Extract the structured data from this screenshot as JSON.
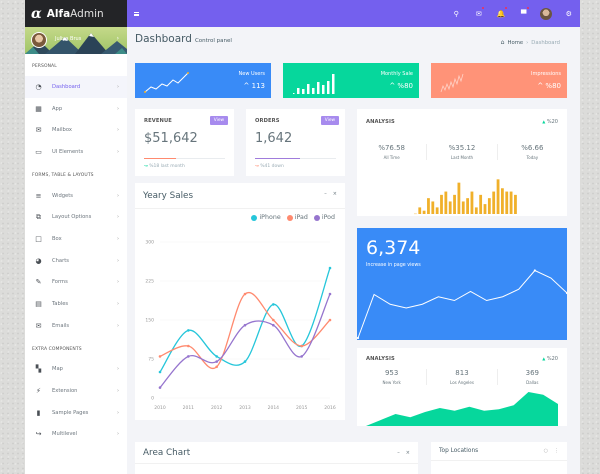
{
  "app": {
    "logo_symbol": "α",
    "logo_bold": "Alfa",
    "logo_light": "Admin"
  },
  "profile": {
    "name": "Juliya Brus",
    "chevron": "›"
  },
  "sidebar": {
    "sections": [
      {
        "title": "PERSONAL",
        "items": [
          {
            "label": "Dashboard",
            "icon": "dashboard-icon",
            "glyph": "◔",
            "active": true
          },
          {
            "label": "App",
            "icon": "apps-grid-icon",
            "glyph": "▦"
          },
          {
            "label": "Mailbox",
            "icon": "mailbox-icon",
            "glyph": "✉"
          },
          {
            "label": "UI Elements",
            "icon": "laptop-icon",
            "glyph": "▭"
          }
        ]
      },
      {
        "title": "FORMS, TABLE & LAYOUTS",
        "items": [
          {
            "label": "Widgets",
            "icon": "widgets-icon",
            "glyph": "≡"
          },
          {
            "label": "Layout Options",
            "icon": "layout-icon",
            "glyph": "⧉"
          },
          {
            "label": "Box",
            "icon": "box-icon",
            "glyph": "□"
          },
          {
            "label": "Charts",
            "icon": "pie-chart-icon",
            "glyph": "◕"
          },
          {
            "label": "Forms",
            "icon": "edit-form-icon",
            "glyph": "✎"
          },
          {
            "label": "Tables",
            "icon": "table-icon",
            "glyph": "▤"
          },
          {
            "label": "Emails",
            "icon": "email-open-icon",
            "glyph": "✉"
          }
        ]
      },
      {
        "title": "EXTRA COMPONENTS",
        "items": [
          {
            "label": "Map",
            "icon": "map-icon",
            "glyph": "▚"
          },
          {
            "label": "Extension",
            "icon": "plug-icon",
            "glyph": "⚡"
          },
          {
            "label": "Sample Pages",
            "icon": "file-icon",
            "glyph": "▮"
          },
          {
            "label": "Multilevel",
            "icon": "share-arrow-icon",
            "glyph": "↪"
          }
        ]
      }
    ]
  },
  "topbar": {
    "icons": [
      {
        "name": "search-icon",
        "glyph": "⚲",
        "badge": false
      },
      {
        "name": "mail-icon",
        "glyph": "✉",
        "badge": true
      },
      {
        "name": "bell-icon",
        "glyph": "🔔",
        "badge": true
      },
      {
        "name": "chat-icon",
        "glyph": "▀",
        "badge": true
      },
      {
        "name": "user-avatar",
        "glyph": "",
        "badge": false
      },
      {
        "name": "settings-icon",
        "glyph": "⚙",
        "badge": false
      }
    ]
  },
  "page": {
    "title": "Dashboard",
    "subtitle": "Control panel",
    "breadcrumb": {
      "home": "Home",
      "sep": "›",
      "current": "Dashboard"
    }
  },
  "stats": [
    {
      "label": "New Users",
      "value": "^ 113",
      "color": "#398bf7"
    },
    {
      "label": "Monthly Sale",
      "value": "^ %80",
      "color": "#06d79c"
    },
    {
      "label": "Impressions",
      "value": "^ %80",
      "color": "#ff9378"
    }
  ],
  "revenue": {
    "title": "REVENUE",
    "button": "View",
    "value": "$51,642",
    "progress": 35,
    "color": "#ff8a6f",
    "note_icon": "↝",
    "note": "%18 last month"
  },
  "orders": {
    "title": "ORDERS",
    "button": "View",
    "value": "1,642",
    "progress": 55,
    "color": "#a07cdc",
    "note_icon": "↝",
    "note": "%41 down"
  },
  "analysis1": {
    "title": "ANALYSIS",
    "trend": "%20",
    "cols": [
      {
        "value": "%76.58",
        "label": "All Time"
      },
      {
        "value": "%35.12",
        "label": "Last Month"
      },
      {
        "value": "%6.66",
        "label": "Today"
      }
    ],
    "bars": [
      1,
      20,
      10,
      48,
      38,
      20,
      58,
      68,
      38,
      58,
      95,
      38,
      48,
      68,
      20,
      58,
      30,
      48,
      68,
      105,
      78,
      68,
      68,
      58
    ],
    "bar_color": "#f0b02a"
  },
  "yearly_sales": {
    "title": "Yeary Sales",
    "minimize": "–",
    "close": "×"
  },
  "pageviews": {
    "value": "6,374",
    "label": "Increase in page views",
    "color": "#398bf7",
    "points": [
      0,
      58,
      45,
      40,
      45,
      55,
      50,
      62,
      50,
      55,
      65,
      90,
      80,
      60
    ]
  },
  "analysis2": {
    "title": "ANALYSIS",
    "trend": "%20",
    "cols": [
      {
        "value": "953",
        "label": "New York"
      },
      {
        "value": "813",
        "label": "Los Angeles"
      },
      {
        "value": "369",
        "label": "Dallas"
      }
    ],
    "area_points": [
      0,
      15,
      30,
      22,
      35,
      45,
      38,
      48,
      38,
      42,
      52,
      85,
      78,
      55
    ],
    "color": "#06d79c"
  },
  "area_chart": {
    "title": "Area Chart",
    "minimize": "–",
    "close": "×"
  },
  "top_locations": {
    "title": "Top Locations",
    "refresh": "○",
    "menu": "⋮"
  },
  "chart_data": {
    "type": "line",
    "title": "Yeary Sales",
    "categories": [
      "2010",
      "2011",
      "2012",
      "2013",
      "2014",
      "2015",
      "2016"
    ],
    "series": [
      {
        "name": "iPhone",
        "color": "#26c6da",
        "values": [
          50,
          130,
          80,
          70,
          180,
          100,
          250
        ]
      },
      {
        "name": "iPad",
        "color": "#ff8a6f",
        "values": [
          80,
          100,
          60,
          200,
          150,
          100,
          150
        ]
      },
      {
        "name": "iPod",
        "color": "#9675ce",
        "values": [
          20,
          80,
          70,
          140,
          140,
          80,
          200
        ]
      }
    ],
    "yticks": [
      0,
      75,
      150,
      225,
      300
    ],
    "ylim": [
      0,
      300
    ],
    "xlabel": "",
    "ylabel": "",
    "legend_position": "top-right",
    "grid": true
  }
}
